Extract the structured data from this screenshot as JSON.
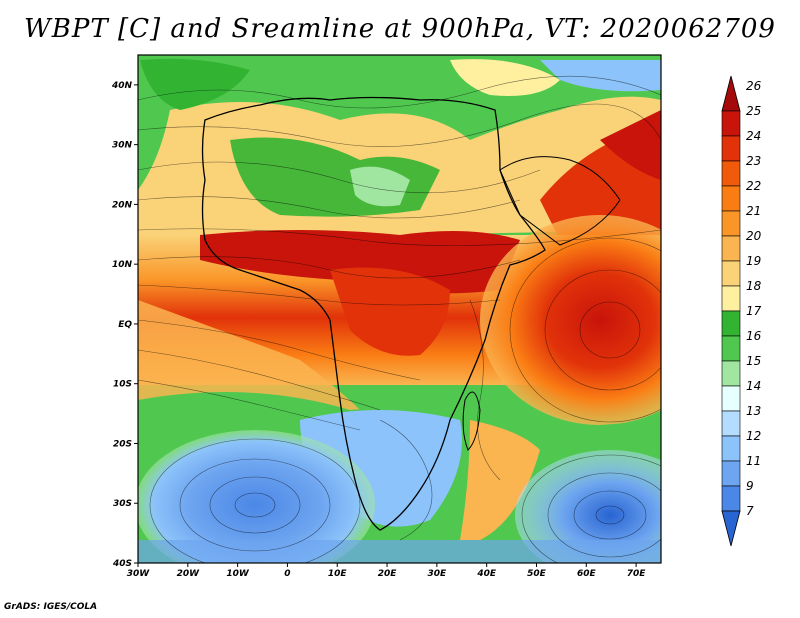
{
  "title": "WBPT [C] and Sreamline at 900hPa, VT: 2020062709",
  "credit": "GrADS: IGES/COLA",
  "map": {
    "variable": "WBPT",
    "unit": "C",
    "level": "900hPa",
    "valid_time": "2020062709",
    "lon_range": [
      -30,
      75
    ],
    "lat_range": [
      -40,
      45
    ],
    "lon_ticks": [
      {
        "value": -30,
        "label": "30W"
      },
      {
        "value": -20,
        "label": "20W"
      },
      {
        "value": -10,
        "label": "10W"
      },
      {
        "value": 0,
        "label": "0"
      },
      {
        "value": 10,
        "label": "10E"
      },
      {
        "value": 20,
        "label": "20E"
      },
      {
        "value": 30,
        "label": "30E"
      },
      {
        "value": 40,
        "label": "40E"
      },
      {
        "value": 50,
        "label": "50E"
      },
      {
        "value": 60,
        "label": "60E"
      },
      {
        "value": 70,
        "label": "70E"
      }
    ],
    "lat_ticks": [
      {
        "value": 40,
        "label": "40N"
      },
      {
        "value": 30,
        "label": "30N"
      },
      {
        "value": 20,
        "label": "20N"
      },
      {
        "value": 10,
        "label": "10N"
      },
      {
        "value": 0,
        "label": "EQ"
      },
      {
        "value": -10,
        "label": "10S"
      },
      {
        "value": -20,
        "label": "20S"
      },
      {
        "value": -30,
        "label": "30S"
      },
      {
        "value": -40,
        "label": "40S"
      }
    ]
  },
  "colorbar": {
    "labels": [
      "26",
      "25",
      "24",
      "23",
      "22",
      "21",
      "20",
      "19",
      "18",
      "17",
      "16",
      "15",
      "14",
      "13",
      "12",
      "11",
      "9",
      "7"
    ],
    "colors": [
      "#a50a0a",
      "#c8140a",
      "#e1320a",
      "#f05a0a",
      "#fa7d14",
      "#fa9628",
      "#fab450",
      "#fad278",
      "#fff0a0",
      "#32b432",
      "#50c850",
      "#a0e6a0",
      "#e6ffff",
      "#b4dcff",
      "#8cc3fa",
      "#6ea5f0",
      "#4b87e6",
      "#2864d2"
    ]
  }
}
